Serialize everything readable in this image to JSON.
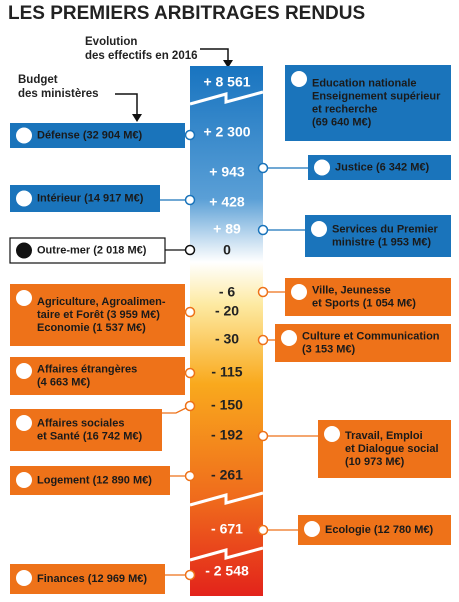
{
  "title": "LES PREMIERS ARBITRAGES RENDUS",
  "labels": {
    "evolution": [
      "Evolution",
      "des effectifs en 2016"
    ],
    "budget": [
      "Budget",
      "des ministères"
    ]
  },
  "scale": [
    "+ 8 561",
    "+ 2 300",
    "+ 943",
    "+ 428",
    "+ 89",
    "0",
    "- 6",
    "- 20",
    "- 30",
    "- 115",
    "- 150",
    "- 192",
    "- 261",
    "- 671",
    "- 2 548"
  ],
  "ministries": [
    {
      "lines": [
        "Education nationale",
        "Enseignement supérieur",
        "et recherche",
        "(69 640 M€)"
      ]
    },
    {
      "lines": [
        "Défense (32 904 M€)"
      ]
    },
    {
      "lines": [
        "Justice (6 342 M€)"
      ]
    },
    {
      "lines": [
        "Intérieur (14 917 M€)"
      ]
    },
    {
      "lines": [
        "Services du Premier",
        "ministre (1 953 M€)"
      ]
    },
    {
      "lines": [
        "Outre-mer (2 018 M€)"
      ]
    },
    {
      "lines": [
        "Ville, Jeunesse",
        "et Sports (1 054 M€)"
      ]
    },
    {
      "lines": [
        "Agriculture, Agroalimen-",
        "taire et Forêt (3 959 M€)",
        "Economie (1 537 M€)"
      ]
    },
    {
      "lines": [
        "Culture et Communication",
        "(3 153 M€)"
      ]
    },
    {
      "lines": [
        "Affaires étrangères",
        "(4 663 M€)"
      ]
    },
    {
      "lines": [
        "Affaires sociales",
        "et Santé (16 742 M€)"
      ]
    },
    {
      "lines": [
        "Travail, Emploi",
        "et Dialogue social",
        "(10 973 M€)"
      ]
    },
    {
      "lines": [
        "Logement (12 890 M€)"
      ]
    },
    {
      "lines": [
        "Ecologie (12 780 M€)"
      ]
    },
    {
      "lines": [
        "Finances (12 969 M€)"
      ]
    }
  ]
}
